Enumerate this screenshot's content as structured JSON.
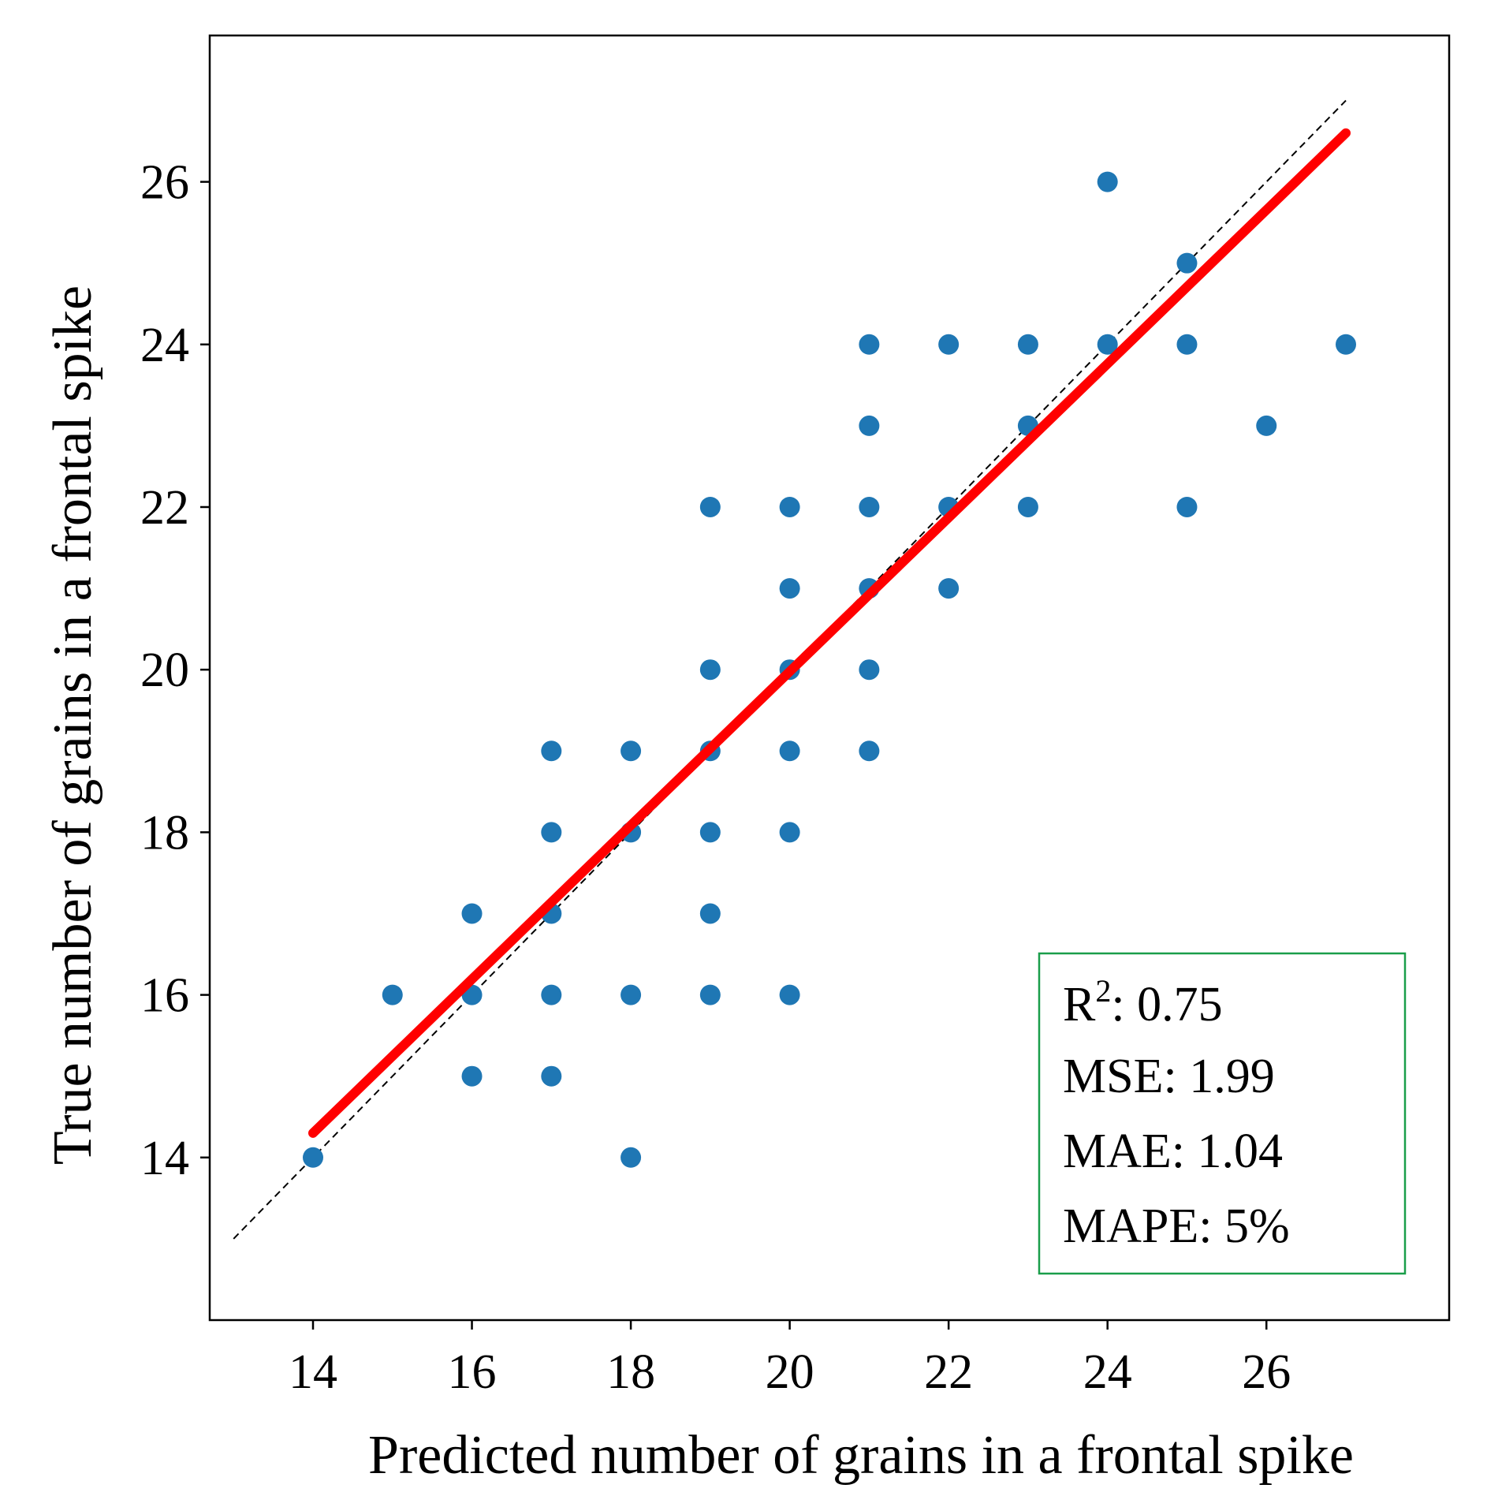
{
  "chart_data": {
    "type": "scatter",
    "xlabel": "Predicted number of grains in a frontal spike",
    "ylabel": "True number of grains in a frontal spike",
    "xlim": [
      12.7,
      28.3
    ],
    "ylim": [
      12.0,
      27.8
    ],
    "xticks": [
      14,
      16,
      18,
      20,
      22,
      24,
      26
    ],
    "yticks": [
      14,
      16,
      18,
      20,
      22,
      24,
      26
    ],
    "grid": false,
    "colors": {
      "points": "#1f77b4",
      "fit_line": "#ff0000",
      "identity_line": "#000000",
      "stats_box_border": "#1a9e4a"
    },
    "series": [
      {
        "name": "samples",
        "points": [
          {
            "x": 14,
            "y": 14
          },
          {
            "x": 15,
            "y": 16
          },
          {
            "x": 16,
            "y": 17
          },
          {
            "x": 16,
            "y": 16
          },
          {
            "x": 16,
            "y": 15
          },
          {
            "x": 17,
            "y": 19
          },
          {
            "x": 17,
            "y": 18
          },
          {
            "x": 17,
            "y": 17
          },
          {
            "x": 17,
            "y": 16
          },
          {
            "x": 17,
            "y": 15
          },
          {
            "x": 18,
            "y": 19
          },
          {
            "x": 18,
            "y": 18
          },
          {
            "x": 18,
            "y": 16
          },
          {
            "x": 18,
            "y": 14
          },
          {
            "x": 19,
            "y": 22
          },
          {
            "x": 19,
            "y": 20
          },
          {
            "x": 19,
            "y": 19
          },
          {
            "x": 19,
            "y": 18
          },
          {
            "x": 19,
            "y": 17
          },
          {
            "x": 19,
            "y": 16
          },
          {
            "x": 20,
            "y": 22
          },
          {
            "x": 20,
            "y": 21
          },
          {
            "x": 20,
            "y": 20
          },
          {
            "x": 20,
            "y": 19
          },
          {
            "x": 20,
            "y": 18
          },
          {
            "x": 20,
            "y": 16
          },
          {
            "x": 21,
            "y": 24
          },
          {
            "x": 21,
            "y": 23
          },
          {
            "x": 21,
            "y": 22
          },
          {
            "x": 21,
            "y": 21
          },
          {
            "x": 21,
            "y": 20
          },
          {
            "x": 21,
            "y": 19
          },
          {
            "x": 22,
            "y": 24
          },
          {
            "x": 22,
            "y": 22
          },
          {
            "x": 22,
            "y": 21
          },
          {
            "x": 23,
            "y": 24
          },
          {
            "x": 23,
            "y": 23
          },
          {
            "x": 23,
            "y": 22
          },
          {
            "x": 24,
            "y": 26
          },
          {
            "x": 24,
            "y": 24
          },
          {
            "x": 25,
            "y": 25
          },
          {
            "x": 25,
            "y": 24
          },
          {
            "x": 25,
            "y": 22
          },
          {
            "x": 26,
            "y": 23
          },
          {
            "x": 27,
            "y": 24
          }
        ]
      }
    ],
    "fit_line": {
      "x": [
        14,
        27
      ],
      "y": [
        14.3,
        26.6
      ]
    },
    "identity_line": {
      "x": [
        13,
        27
      ],
      "y": [
        13,
        27
      ]
    },
    "stats": {
      "r2_label": "R",
      "r2_sup": "2",
      "r2_value": ": 0.75",
      "mse": "MSE: 1.99",
      "mae": "MAE: 1.04",
      "mape": "MAPE: 5%"
    }
  }
}
